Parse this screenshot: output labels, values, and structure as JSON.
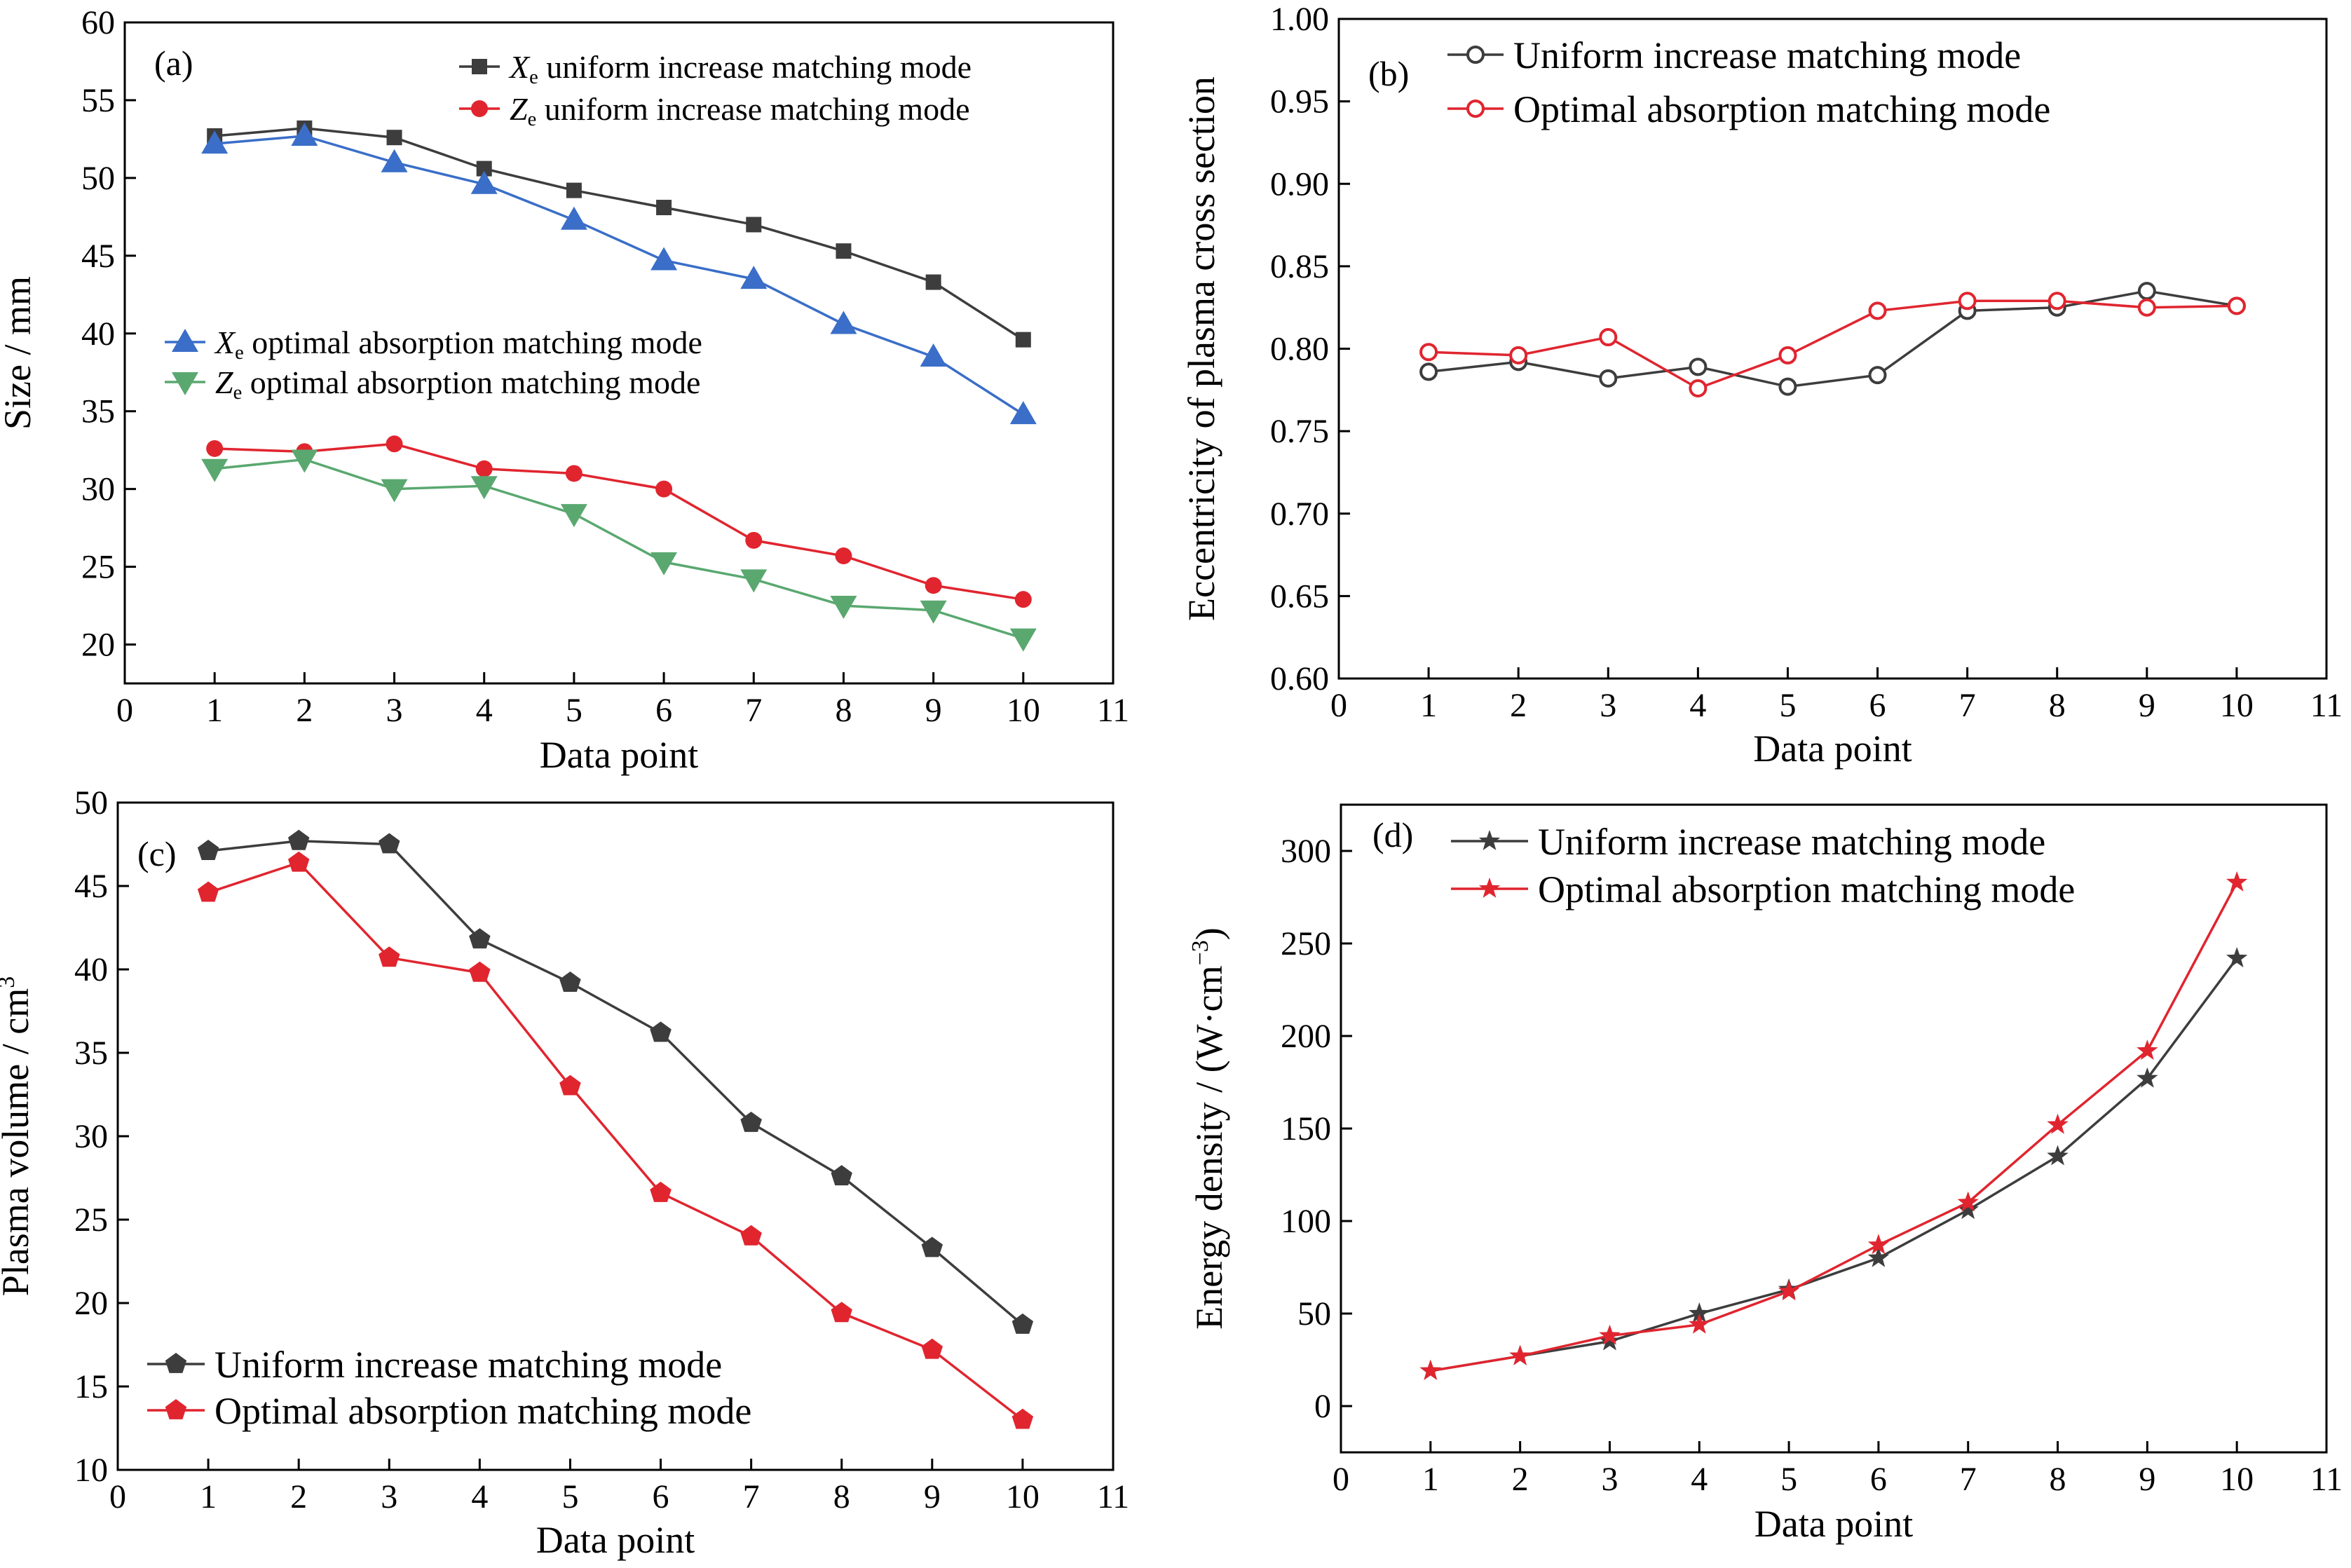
{
  "colors": {
    "dark": "#3d3d3d",
    "red": "#e0252f",
    "blue": "#3a6ec8",
    "green": "#5aa870"
  },
  "chart_data": [
    {
      "id": "a",
      "type": "line",
      "panel_label": "(a)",
      "xlabel": "Data point",
      "ylabel": "Size / mm",
      "xlim": [
        0,
        11
      ],
      "ylim": [
        17.5,
        60
      ],
      "xticks": [
        "0",
        "1",
        "2",
        "3",
        "4",
        "5",
        "6",
        "7",
        "8",
        "9",
        "10",
        "11"
      ],
      "yticks": [
        "20",
        "25",
        "30",
        "35",
        "40",
        "45",
        "50",
        "55",
        "60"
      ],
      "x": [
        1,
        2,
        3,
        4,
        5,
        6,
        7,
        8,
        9,
        10
      ],
      "series": [
        {
          "name_sym": "X",
          "name_sub": "e",
          "name_rest": " uniform increase matching mode",
          "marker": "square",
          "color": "dark",
          "values": [
            52.7,
            53.2,
            52.6,
            50.6,
            49.2,
            48.1,
            47.0,
            45.3,
            43.3,
            39.6
          ]
        },
        {
          "name_sym": "Z",
          "name_sub": "e",
          "name_rest": " uniform increase matching mode",
          "marker": "circle",
          "color": "red",
          "values": [
            32.6,
            32.4,
            32.9,
            31.3,
            31.0,
            30.0,
            26.7,
            25.7,
            23.8,
            22.9
          ]
        },
        {
          "name_sym": "X",
          "name_sub": "e",
          "name_rest": " optimal absorption matching mode",
          "marker": "triangle-up",
          "color": "blue",
          "values": [
            52.2,
            52.7,
            51.0,
            49.6,
            47.3,
            44.7,
            43.5,
            40.6,
            38.5,
            34.8
          ]
        },
        {
          "name_sym": "Z",
          "name_sub": "e",
          "name_rest": " optimal absorption matching mode",
          "marker": "triangle-down",
          "color": "green",
          "values": [
            31.3,
            31.9,
            30.0,
            30.2,
            28.4,
            25.3,
            24.2,
            22.5,
            22.2,
            20.4
          ]
        }
      ],
      "legend": "top-right and middle-left"
    },
    {
      "id": "b",
      "type": "line",
      "panel_label": "(b)",
      "xlabel": "Data point",
      "ylabel": "Eccentricity of plasma cross section",
      "xlim": [
        0,
        11
      ],
      "ylim": [
        0.6,
        1.0
      ],
      "xticks": [
        "0",
        "1",
        "2",
        "3",
        "4",
        "5",
        "6",
        "7",
        "8",
        "9",
        "10",
        "11"
      ],
      "yticks": [
        "0.60",
        "0.65",
        "0.70",
        "0.75",
        "0.80",
        "0.85",
        "0.90",
        "0.95",
        "1.00"
      ],
      "x": [
        1,
        2,
        3,
        4,
        5,
        6,
        7,
        8,
        9,
        10
      ],
      "series": [
        {
          "name": "Uniform increase matching mode",
          "marker": "open-circle",
          "color": "dark",
          "values": [
            0.786,
            0.792,
            0.782,
            0.789,
            0.777,
            0.784,
            0.823,
            0.825,
            0.835,
            0.826
          ]
        },
        {
          "name": "Optimal absorption matching mode",
          "marker": "open-circle",
          "color": "red",
          "values": [
            0.798,
            0.796,
            0.807,
            0.776,
            0.796,
            0.823,
            0.829,
            0.829,
            0.825,
            0.826
          ]
        }
      ],
      "legend": "top-left"
    },
    {
      "id": "c",
      "type": "line",
      "panel_label": "(c)",
      "xlabel": "Data point",
      "ylabel_main": "Plasma volume / cm",
      "ylabel_sup": "3",
      "xlim": [
        0,
        11
      ],
      "ylim": [
        10,
        50
      ],
      "xticks": [
        "0",
        "1",
        "2",
        "3",
        "4",
        "5",
        "6",
        "7",
        "8",
        "9",
        "10",
        "11"
      ],
      "yticks": [
        "10",
        "15",
        "20",
        "25",
        "30",
        "35",
        "40",
        "45",
        "50"
      ],
      "x": [
        1,
        2,
        3,
        4,
        5,
        6,
        7,
        8,
        9,
        10
      ],
      "series": [
        {
          "name": "Uniform increase matching mode",
          "marker": "pentagon",
          "color": "dark",
          "values": [
            47.1,
            47.7,
            47.5,
            41.8,
            39.2,
            36.2,
            30.8,
            27.6,
            23.3,
            18.7
          ]
        },
        {
          "name": "Optimal absorption matching mode",
          "marker": "pentagon",
          "color": "red",
          "values": [
            44.6,
            46.4,
            40.7,
            39.8,
            33.0,
            26.6,
            24.0,
            19.4,
            17.2,
            13.0
          ]
        }
      ],
      "legend": "bottom-left"
    },
    {
      "id": "d",
      "type": "line",
      "panel_label": "(d)",
      "xlabel": "Data point",
      "ylabel_main": "Energy density / (W·cm",
      "ylabel_sup": "−3",
      "ylabel_end": ")",
      "xlim": [
        0,
        11
      ],
      "ylim": [
        -25,
        325
      ],
      "xticks": [
        "0",
        "1",
        "2",
        "3",
        "4",
        "5",
        "6",
        "7",
        "8",
        "9",
        "10",
        "11"
      ],
      "yticks": [
        "0",
        "50",
        "100",
        "150",
        "200",
        "250",
        "300"
      ],
      "x": [
        1,
        2,
        3,
        4,
        5,
        6,
        7,
        8,
        9,
        10
      ],
      "series": [
        {
          "name": "Uniform increase matching mode",
          "marker": "star",
          "color": "dark",
          "values": [
            19,
            27,
            35,
            50,
            63,
            80,
            106,
            135,
            177,
            242
          ]
        },
        {
          "name": "Optimal absorption matching mode",
          "marker": "star",
          "color": "red",
          "values": [
            19,
            27,
            38,
            44,
            62,
            87,
            110,
            152,
            192,
            283
          ]
        }
      ],
      "legend": "top-left"
    }
  ]
}
